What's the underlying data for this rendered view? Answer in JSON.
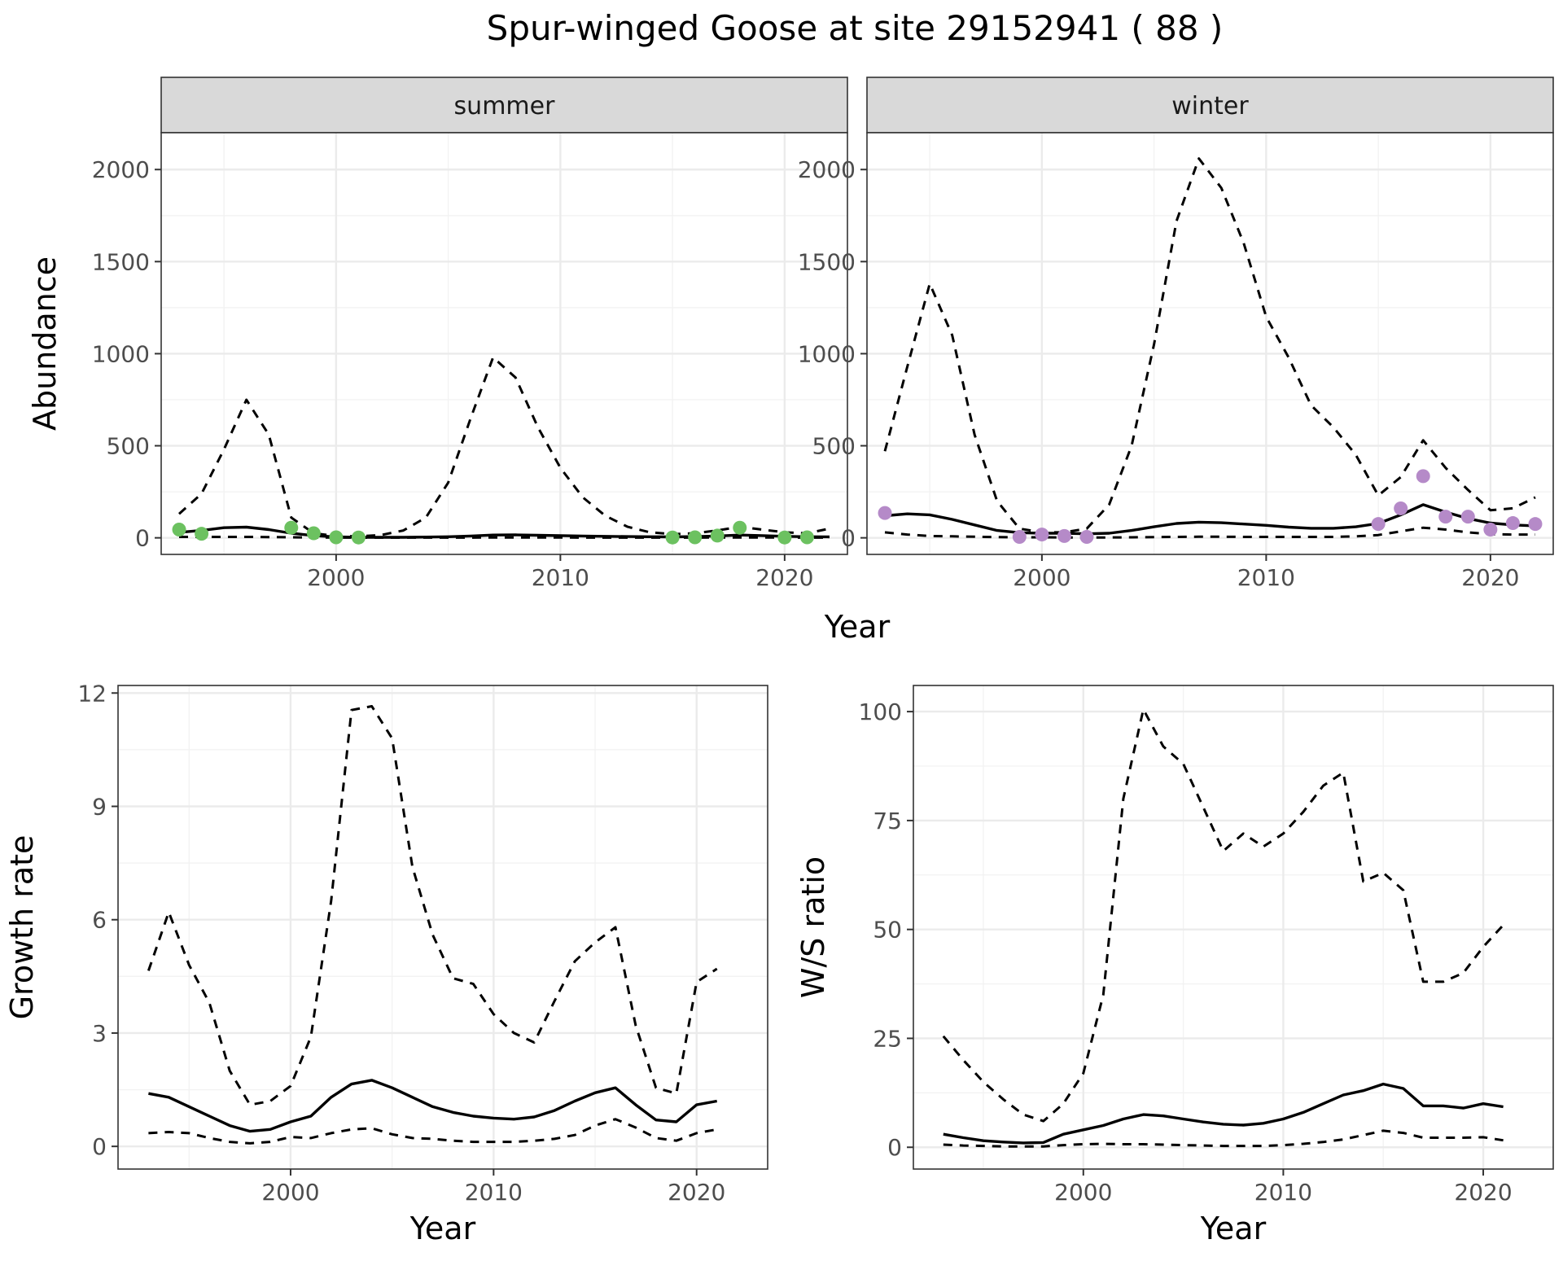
{
  "figure_title": "Spur-winged Goose at site 29152941 ( 88 )",
  "colors": {
    "summer_points": "#6cc160",
    "winter_points": "#b58ac8"
  },
  "chart_data": [
    {
      "type": "line",
      "facet": "summer",
      "xlabel": "Year",
      "ylabel": "Abundance",
      "xlim": [
        1992.2,
        2022.8
      ],
      "ylim": [
        -90,
        2200
      ],
      "x_ticks": [
        2000,
        2010,
        2020
      ],
      "y_ticks": [
        0,
        500,
        1000,
        1500,
        2000
      ],
      "legend": "none",
      "grid": true,
      "series": [
        {
          "role": "mean",
          "style": "solid",
          "x": [
            1993,
            1994,
            1995,
            1996,
            1997,
            1998,
            1999,
            2000,
            2001,
            2002,
            2003,
            2004,
            2005,
            2006,
            2007,
            2008,
            2009,
            2010,
            2011,
            2012,
            2013,
            2014,
            2015,
            2016,
            2017,
            2018,
            2019,
            2020,
            2021,
            2022
          ],
          "y": [
            30,
            40,
            55,
            58,
            45,
            25,
            12,
            5,
            3,
            3,
            3,
            4,
            6,
            10,
            15,
            16,
            14,
            12,
            10,
            8,
            7,
            6,
            5,
            7,
            10,
            15,
            12,
            8,
            6,
            5
          ]
        },
        {
          "role": "upper",
          "style": "dashed",
          "x": [
            1993,
            1994,
            1995,
            1996,
            1997,
            1998,
            1999,
            2000,
            2001,
            2002,
            2003,
            2004,
            2005,
            2006,
            2007,
            2008,
            2009,
            2010,
            2011,
            2012,
            2013,
            2014,
            2015,
            2016,
            2017,
            2018,
            2019,
            2020,
            2021,
            2022
          ],
          "y": [
            130,
            240,
            480,
            750,
            560,
            110,
            25,
            10,
            8,
            15,
            40,
            110,
            300,
            650,
            980,
            870,
            600,
            380,
            220,
            120,
            60,
            30,
            20,
            25,
            40,
            60,
            45,
            30,
            25,
            50
          ]
        },
        {
          "role": "lower",
          "style": "dashed",
          "x": [
            1993,
            1994,
            1995,
            1996,
            1997,
            1998,
            1999,
            2000,
            2001,
            2002,
            2003,
            2004,
            2005,
            2006,
            2007,
            2008,
            2009,
            2010,
            2011,
            2012,
            2013,
            2014,
            2015,
            2016,
            2017,
            2018,
            2019,
            2020,
            2021,
            2022
          ],
          "y": [
            5,
            5,
            5,
            5,
            4,
            3,
            2,
            1,
            1,
            1,
            1,
            1,
            1,
            1,
            2,
            2,
            2,
            2,
            1,
            1,
            1,
            1,
            1,
            1,
            2,
            2,
            2,
            1,
            1,
            1
          ]
        },
        {
          "role": "observed",
          "style": "points",
          "color": "#6cc160",
          "x": [
            1993,
            1994,
            1998,
            1999,
            2000,
            2001,
            2015,
            2016,
            2017,
            2018,
            2020,
            2021
          ],
          "y": [
            45,
            22,
            55,
            25,
            3,
            2,
            2,
            3,
            12,
            55,
            2,
            3
          ]
        }
      ]
    },
    {
      "type": "line",
      "facet": "winter",
      "xlabel": "Year",
      "ylabel": "Abundance",
      "xlim": [
        1992.2,
        2022.8
      ],
      "ylim": [
        -90,
        2200
      ],
      "x_ticks": [
        2000,
        2010,
        2020
      ],
      "y_ticks": [
        0,
        500,
        1000,
        1500,
        2000
      ],
      "legend": "none",
      "grid": true,
      "series": [
        {
          "role": "mean",
          "style": "solid",
          "x": [
            1993,
            1994,
            1995,
            1996,
            1997,
            1998,
            1999,
            2000,
            2001,
            2002,
            2003,
            2004,
            2005,
            2006,
            2007,
            2008,
            2009,
            2010,
            2011,
            2012,
            2013,
            2014,
            2015,
            2016,
            2017,
            2018,
            2019,
            2020,
            2021,
            2022
          ],
          "y": [
            120,
            130,
            125,
            100,
            70,
            40,
            28,
            25,
            25,
            22,
            25,
            40,
            60,
            78,
            85,
            82,
            75,
            68,
            58,
            52,
            52,
            60,
            78,
            125,
            180,
            140,
            105,
            80,
            70,
            65
          ]
        },
        {
          "role": "upper",
          "style": "dashed",
          "x": [
            1993,
            1994,
            1995,
            1996,
            1997,
            1998,
            1999,
            2000,
            2001,
            2002,
            2003,
            2004,
            2005,
            2006,
            2007,
            2008,
            2009,
            2010,
            2011,
            2012,
            2013,
            2014,
            2015,
            2016,
            2017,
            2018,
            2019,
            2020,
            2021,
            2022
          ],
          "y": [
            470,
            930,
            1380,
            1100,
            560,
            200,
            50,
            30,
            30,
            50,
            180,
            500,
            1050,
            1720,
            2060,
            1900,
            1600,
            1200,
            980,
            720,
            600,
            450,
            230,
            330,
            530,
            380,
            260,
            150,
            160,
            220
          ]
        },
        {
          "role": "lower",
          "style": "dashed",
          "x": [
            1993,
            1994,
            1995,
            1996,
            1997,
            1998,
            1999,
            2000,
            2001,
            2002,
            2003,
            2004,
            2005,
            2006,
            2007,
            2008,
            2009,
            2010,
            2011,
            2012,
            2013,
            2014,
            2015,
            2016,
            2017,
            2018,
            2019,
            2020,
            2021,
            2022
          ],
          "y": [
            30,
            18,
            10,
            8,
            6,
            4,
            3,
            3,
            2,
            2,
            2,
            3,
            4,
            5,
            6,
            6,
            5,
            5,
            5,
            5,
            5,
            8,
            15,
            35,
            55,
            45,
            30,
            20,
            18,
            18
          ]
        },
        {
          "role": "observed",
          "style": "points",
          "color": "#b58ac8",
          "x": [
            1993,
            1999,
            2000,
            2001,
            2002,
            2015,
            2016,
            2017,
            2018,
            2019,
            2020,
            2021,
            2022
          ],
          "y": [
            135,
            5,
            18,
            10,
            5,
            75,
            160,
            335,
            115,
            115,
            45,
            80,
            75
          ]
        }
      ]
    },
    {
      "type": "line",
      "xlabel": "Year",
      "ylabel": "Growth rate",
      "xlim": [
        1991.5,
        2023.5
      ],
      "ylim": [
        -0.6,
        12.2
      ],
      "x_ticks": [
        2000,
        2010,
        2020
      ],
      "y_ticks": [
        0,
        3,
        6,
        9,
        12
      ],
      "legend": "none",
      "grid": true,
      "series": [
        {
          "role": "mean",
          "style": "solid",
          "x": [
            1993,
            1994,
            1995,
            1996,
            1997,
            1998,
            1999,
            2000,
            2001,
            2002,
            2003,
            2004,
            2005,
            2006,
            2007,
            2008,
            2009,
            2010,
            2011,
            2012,
            2013,
            2014,
            2015,
            2016,
            2017,
            2018,
            2019,
            2020,
            2021
          ],
          "y": [
            1.4,
            1.3,
            1.05,
            0.8,
            0.55,
            0.4,
            0.45,
            0.65,
            0.8,
            1.3,
            1.65,
            1.75,
            1.55,
            1.3,
            1.05,
            0.9,
            0.8,
            0.75,
            0.72,
            0.78,
            0.95,
            1.2,
            1.42,
            1.55,
            1.1,
            0.7,
            0.65,
            1.1,
            1.2
          ]
        },
        {
          "role": "upper",
          "style": "dashed",
          "x": [
            1993,
            1994,
            1995,
            1996,
            1997,
            1998,
            1999,
            2000,
            2001,
            2002,
            2003,
            2004,
            2005,
            2006,
            2007,
            2008,
            2009,
            2010,
            2011,
            2012,
            2013,
            2014,
            2015,
            2016,
            2017,
            2018,
            2019,
            2020,
            2021
          ],
          "y": [
            4.65,
            6.2,
            4.8,
            3.8,
            2.0,
            1.1,
            1.2,
            1.6,
            2.9,
            6.5,
            11.55,
            11.65,
            10.8,
            7.4,
            5.6,
            4.45,
            4.3,
            3.5,
            3.0,
            2.75,
            3.85,
            4.9,
            5.4,
            5.8,
            3.2,
            1.55,
            1.4,
            4.35,
            4.7
          ]
        },
        {
          "role": "lower",
          "style": "dashed",
          "x": [
            1993,
            1994,
            1995,
            1996,
            1997,
            1998,
            1999,
            2000,
            2001,
            2002,
            2003,
            2004,
            2005,
            2006,
            2007,
            2008,
            2009,
            2010,
            2011,
            2012,
            2013,
            2014,
            2015,
            2016,
            2017,
            2018,
            2019,
            2020,
            2021
          ],
          "y": [
            0.35,
            0.38,
            0.35,
            0.22,
            0.12,
            0.08,
            0.12,
            0.25,
            0.22,
            0.35,
            0.45,
            0.48,
            0.32,
            0.22,
            0.2,
            0.15,
            0.12,
            0.12,
            0.12,
            0.15,
            0.2,
            0.3,
            0.55,
            0.72,
            0.5,
            0.22,
            0.15,
            0.35,
            0.45
          ]
        }
      ]
    },
    {
      "type": "line",
      "xlabel": "Year",
      "ylabel": "W/S ratio",
      "xlim": [
        1991.5,
        2023.5
      ],
      "ylim": [
        -5,
        106
      ],
      "x_ticks": [
        2000,
        2010,
        2020
      ],
      "y_ticks": [
        0,
        25,
        50,
        75,
        100
      ],
      "legend": "none",
      "grid": true,
      "series": [
        {
          "role": "mean",
          "style": "solid",
          "x": [
            1993,
            1994,
            1995,
            1996,
            1997,
            1998,
            1999,
            2000,
            2001,
            2002,
            2003,
            2004,
            2005,
            2006,
            2007,
            2008,
            2009,
            2010,
            2011,
            2012,
            2013,
            2014,
            2015,
            2016,
            2017,
            2018,
            2019,
            2020,
            2021
          ],
          "y": [
            3,
            2.2,
            1.5,
            1.2,
            1.0,
            1.1,
            3.0,
            4.0,
            5.0,
            6.5,
            7.5,
            7.2,
            6.5,
            5.8,
            5.3,
            5.1,
            5.5,
            6.5,
            8,
            10,
            12,
            13,
            14.5,
            13.5,
            9.5,
            9.5,
            9,
            10,
            9.3
          ]
        },
        {
          "role": "upper",
          "style": "dashed",
          "x": [
            1993,
            1994,
            1995,
            1996,
            1997,
            1998,
            1999,
            2000,
            2001,
            2002,
            2003,
            2004,
            2005,
            2006,
            2007,
            2008,
            2009,
            2010,
            2011,
            2012,
            2013,
            2014,
            2015,
            2016,
            2017,
            2018,
            2019,
            2020,
            2021
          ],
          "y": [
            25.5,
            20,
            15,
            11,
            7.5,
            6,
            10,
            17,
            35,
            80,
            100.5,
            92,
            88,
            78,
            68,
            72,
            69,
            72,
            77,
            83,
            86,
            61,
            63,
            59,
            38,
            38,
            40,
            46,
            51
          ]
        },
        {
          "role": "lower",
          "style": "dashed",
          "x": [
            1993,
            1994,
            1995,
            1996,
            1997,
            1998,
            1999,
            2000,
            2001,
            2002,
            2003,
            2004,
            2005,
            2006,
            2007,
            2008,
            2009,
            2010,
            2011,
            2012,
            2013,
            2014,
            2015,
            2016,
            2017,
            2018,
            2019,
            2020,
            2021
          ],
          "y": [
            0.6,
            0.4,
            0.3,
            0.2,
            0.2,
            0.2,
            0.5,
            0.7,
            0.8,
            0.7,
            0.7,
            0.6,
            0.5,
            0.4,
            0.3,
            0.3,
            0.3,
            0.5,
            0.8,
            1.2,
            1.8,
            2.8,
            3.8,
            3.3,
            2.2,
            2.2,
            2.2,
            2.3,
            1.6
          ]
        }
      ]
    }
  ]
}
